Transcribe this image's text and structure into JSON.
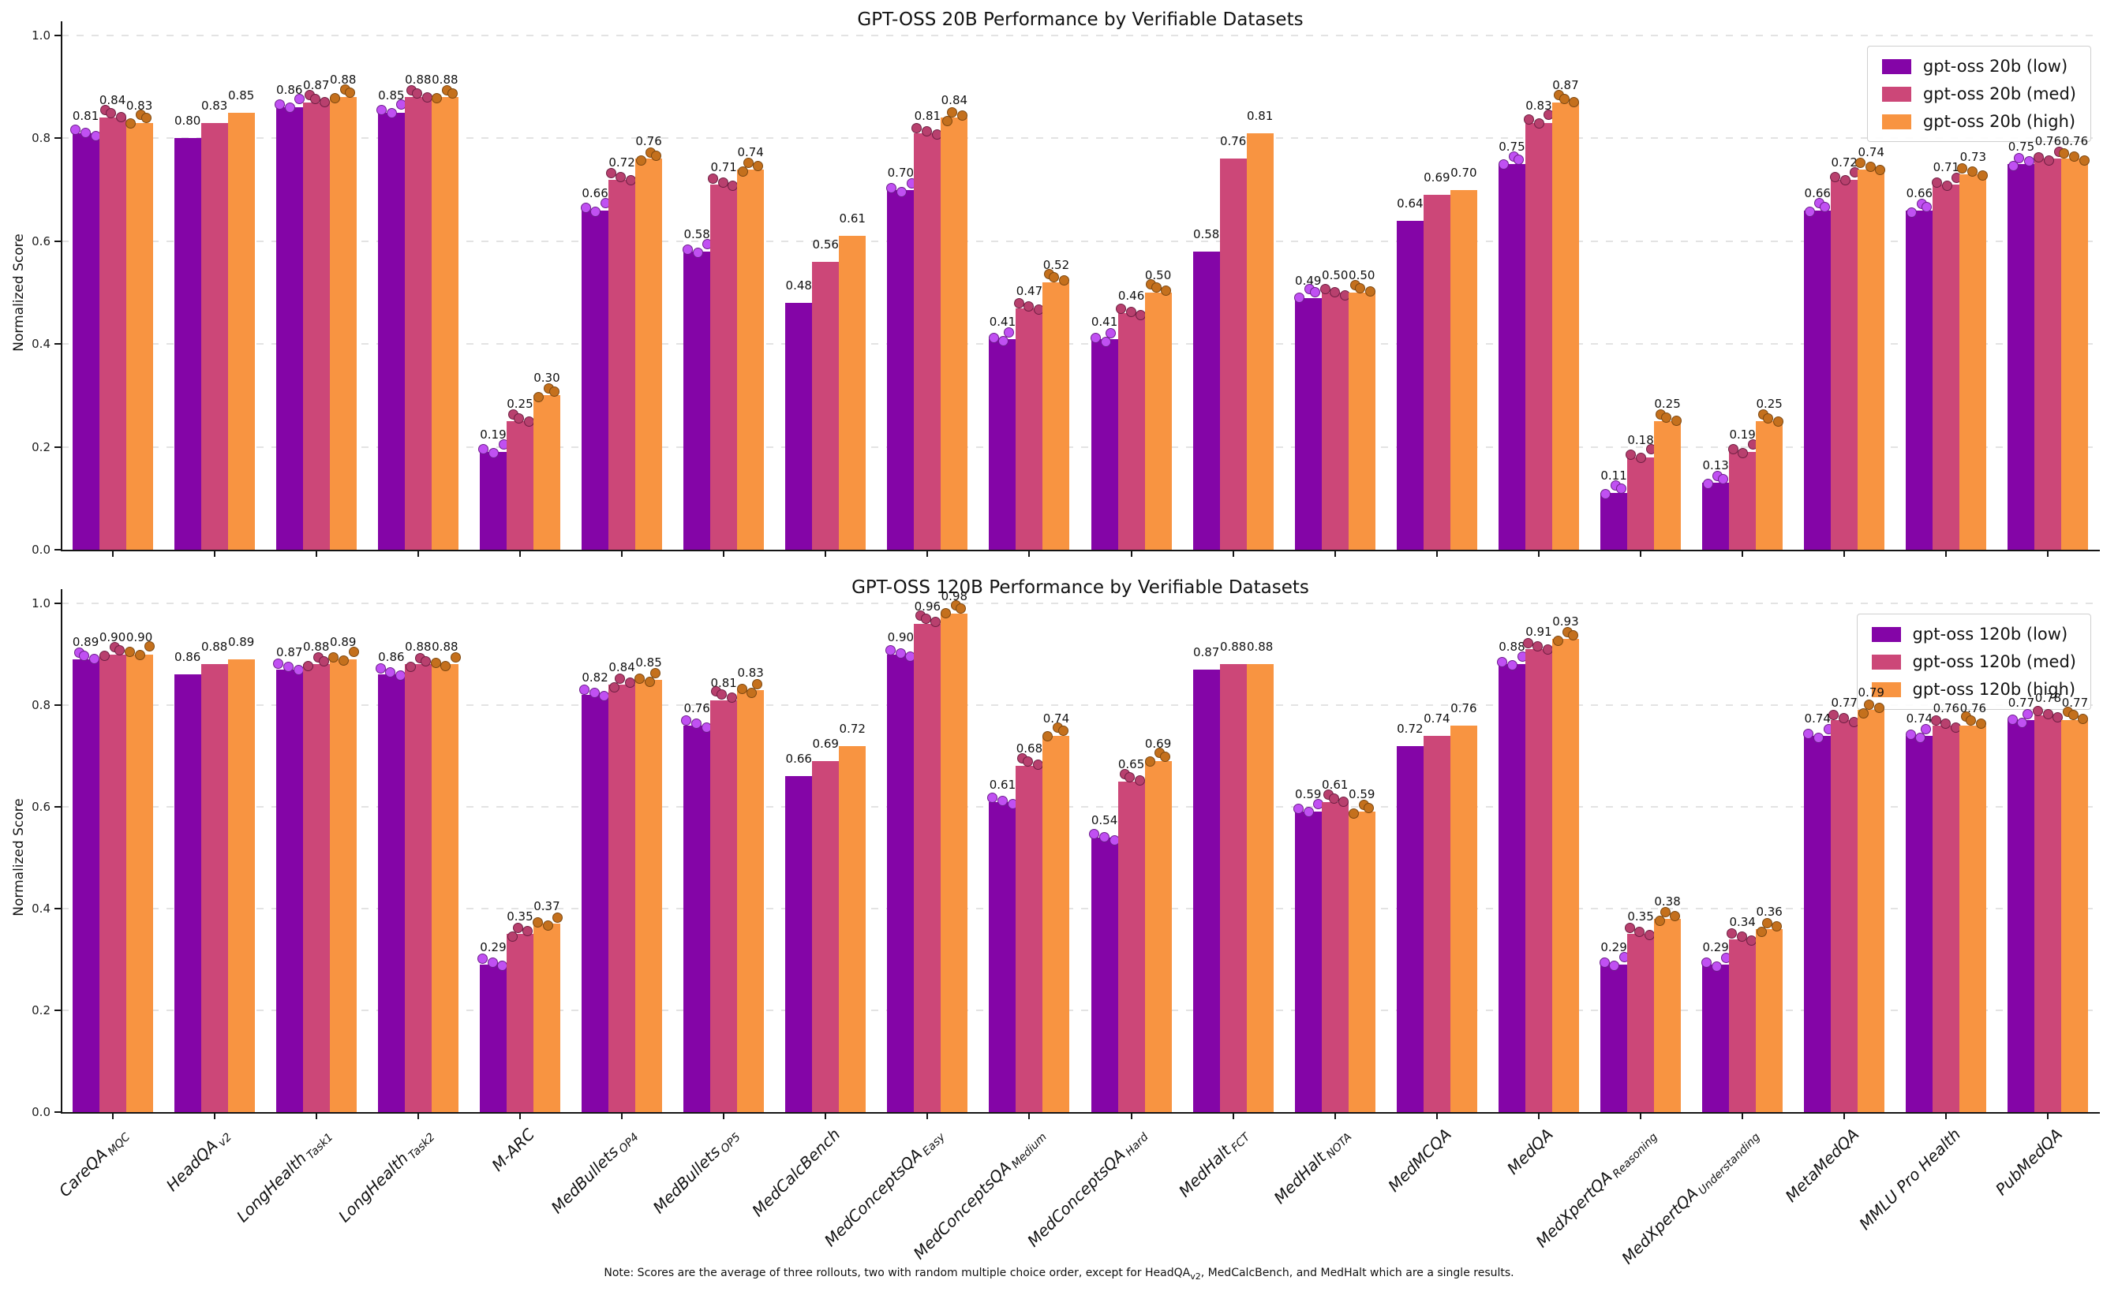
{
  "figure": {
    "background": "#ffffff",
    "ylabel": "Normalized Score"
  },
  "note": {
    "prefix": "Note: Scores are the average of three rollouts, two with random multiple choice order, except for HeadQA",
    "sub": "v2",
    "suffix": ", MedCalcBench, and MedHalt which are a single results."
  },
  "chart_data": [
    {
      "type": "bar",
      "title": "GPT-OSS 20B Performance by Verifiable Datasets",
      "xlabel": "",
      "ylabel": "Normalized Score",
      "ylim": [
        0.0,
        1.0
      ],
      "yticks": [
        "0.0",
        "0.2",
        "0.4",
        "0.6",
        "0.8",
        "1.0"
      ],
      "grid": "horizontal-dashed",
      "legend_position": "upper-right",
      "has_x_tick_labels": false,
      "rollout_dots": true,
      "single_result_category_indices": [
        1,
        7,
        11,
        13
      ],
      "categories": [
        {
          "label": "CareQA",
          "sub": "MQC"
        },
        {
          "label": "HeadQA",
          "sub": "v2"
        },
        {
          "label": "LongHealth",
          "sub": "Task1"
        },
        {
          "label": "LongHealth",
          "sub": "Task2"
        },
        {
          "label": "M-ARC",
          "sub": ""
        },
        {
          "label": "MedBullets",
          "sub": "OP4"
        },
        {
          "label": "MedBullets",
          "sub": "OP5"
        },
        {
          "label": "MedCalcBench",
          "sub": ""
        },
        {
          "label": "MedConceptsQA",
          "sub": "Easy"
        },
        {
          "label": "MedConceptsQA",
          "sub": "Medium"
        },
        {
          "label": "MedConceptsQA",
          "sub": "Hard"
        },
        {
          "label": "MedHalt",
          "sub": "FCT"
        },
        {
          "label": "MedHalt",
          "sub": "NOTA"
        },
        {
          "label": "MedMCQA",
          "sub": ""
        },
        {
          "label": "MedQA",
          "sub": ""
        },
        {
          "label": "MedXpertQA",
          "sub": "Reasoning"
        },
        {
          "label": "MedXpertQA",
          "sub": "Understanding"
        },
        {
          "label": "MetaMedQA",
          "sub": ""
        },
        {
          "label": "MMLU Pro Health",
          "sub": ""
        },
        {
          "label": "PubMedQA",
          "sub": ""
        }
      ],
      "series": [
        {
          "name": "gpt-oss 20b (low)",
          "color": "#8405a7",
          "dot_color": "#c050f2",
          "dot_edge": "#6d1d8c",
          "values": [
            0.81,
            0.8,
            0.86,
            0.85,
            0.19,
            0.66,
            0.58,
            0.48,
            0.7,
            0.41,
            0.41,
            0.58,
            0.49,
            0.64,
            0.75,
            0.11,
            0.13,
            0.66,
            0.66,
            0.75
          ]
        },
        {
          "name": "gpt-oss 20b (med)",
          "color": "#cc4778",
          "dot_color": "#b8406e",
          "dot_edge": "#6f1f43",
          "values": [
            0.84,
            0.83,
            0.87,
            0.88,
            0.25,
            0.72,
            0.71,
            0.56,
            0.81,
            0.47,
            0.46,
            0.76,
            0.5,
            0.69,
            0.83,
            0.18,
            0.19,
            0.72,
            0.71,
            0.76
          ]
        },
        {
          "name": "gpt-oss 20b (high)",
          "color": "#f89441",
          "dot_color": "#c4701d",
          "dot_edge": "#7d4811",
          "values": [
            0.83,
            0.85,
            0.88,
            0.88,
            0.3,
            0.76,
            0.74,
            0.61,
            0.84,
            0.52,
            0.5,
            0.81,
            0.5,
            0.7,
            0.87,
            0.25,
            0.25,
            0.74,
            0.73,
            0.76
          ]
        }
      ]
    },
    {
      "type": "bar",
      "title": "GPT-OSS 120B Performance by Verifiable Datasets",
      "xlabel": "",
      "ylabel": "Normalized Score",
      "ylim": [
        0.0,
        1.0
      ],
      "yticks": [
        "0.0",
        "0.2",
        "0.4",
        "0.6",
        "0.8",
        "1.0"
      ],
      "grid": "horizontal-dashed",
      "legend_position": "upper-right",
      "has_x_tick_labels": true,
      "rollout_dots": true,
      "single_result_category_indices": [
        1,
        7,
        11,
        13
      ],
      "categories": [
        {
          "label": "CareQA",
          "sub": "MQC"
        },
        {
          "label": "HeadQA",
          "sub": "v2"
        },
        {
          "label": "LongHealth",
          "sub": "Task1"
        },
        {
          "label": "LongHealth",
          "sub": "Task2"
        },
        {
          "label": "M-ARC",
          "sub": ""
        },
        {
          "label": "MedBullets",
          "sub": "OP4"
        },
        {
          "label": "MedBullets",
          "sub": "OP5"
        },
        {
          "label": "MedCalcBench",
          "sub": ""
        },
        {
          "label": "MedConceptsQA",
          "sub": "Easy"
        },
        {
          "label": "MedConceptsQA",
          "sub": "Medium"
        },
        {
          "label": "MedConceptsQA",
          "sub": "Hard"
        },
        {
          "label": "MedHalt",
          "sub": "FCT"
        },
        {
          "label": "MedHalt",
          "sub": "NOTA"
        },
        {
          "label": "MedMCQA",
          "sub": ""
        },
        {
          "label": "MedQA",
          "sub": ""
        },
        {
          "label": "MedXpertQA",
          "sub": "Reasoning"
        },
        {
          "label": "MedXpertQA",
          "sub": "Understanding"
        },
        {
          "label": "MetaMedQA",
          "sub": ""
        },
        {
          "label": "MMLU Pro Health",
          "sub": ""
        },
        {
          "label": "PubMedQA",
          "sub": ""
        }
      ],
      "series": [
        {
          "name": "gpt-oss 120b (low)",
          "color": "#8405a7",
          "dot_color": "#c050f2",
          "dot_edge": "#6d1d8c",
          "values": [
            0.89,
            0.86,
            0.87,
            0.86,
            0.29,
            0.82,
            0.76,
            0.66,
            0.9,
            0.61,
            0.54,
            0.87,
            0.59,
            0.72,
            0.88,
            0.29,
            0.29,
            0.74,
            0.74,
            0.77
          ]
        },
        {
          "name": "gpt-oss 120b (med)",
          "color": "#cc4778",
          "dot_color": "#b8406e",
          "dot_edge": "#6f1f43",
          "values": [
            0.9,
            0.88,
            0.88,
            0.88,
            0.35,
            0.84,
            0.81,
            0.69,
            0.96,
            0.68,
            0.65,
            0.88,
            0.61,
            0.74,
            0.91,
            0.35,
            0.34,
            0.77,
            0.76,
            0.78
          ]
        },
        {
          "name": "gpt-oss 120b (high)",
          "color": "#f89441",
          "dot_color": "#c4701d",
          "dot_edge": "#7d4811",
          "values": [
            0.9,
            0.89,
            0.89,
            0.88,
            0.37,
            0.85,
            0.83,
            0.72,
            0.98,
            0.74,
            0.69,
            0.88,
            0.59,
            0.76,
            0.93,
            0.38,
            0.36,
            0.79,
            0.76,
            0.77
          ]
        }
      ]
    }
  ]
}
